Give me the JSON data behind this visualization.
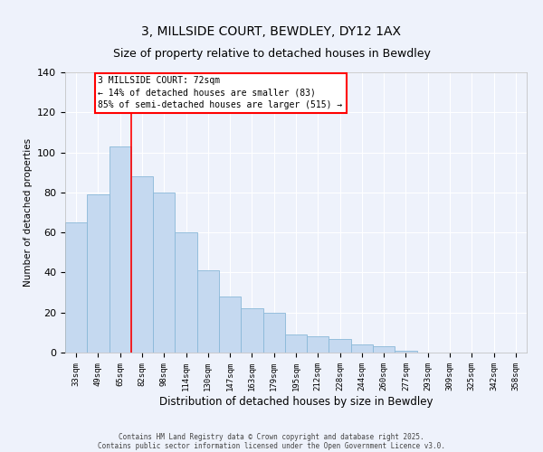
{
  "title": "3, MILLSIDE COURT, BEWDLEY, DY12 1AX",
  "subtitle": "Size of property relative to detached houses in Bewdley",
  "xlabel": "Distribution of detached houses by size in Bewdley",
  "ylabel": "Number of detached properties",
  "categories": [
    "33sqm",
    "49sqm",
    "65sqm",
    "82sqm",
    "98sqm",
    "114sqm",
    "130sqm",
    "147sqm",
    "163sqm",
    "179sqm",
    "195sqm",
    "212sqm",
    "228sqm",
    "244sqm",
    "260sqm",
    "277sqm",
    "293sqm",
    "309sqm",
    "325sqm",
    "342sqm",
    "358sqm"
  ],
  "values": [
    65,
    79,
    103,
    88,
    80,
    60,
    41,
    28,
    22,
    20,
    9,
    8,
    7,
    4,
    3,
    1,
    0,
    0,
    0,
    0,
    0
  ],
  "bar_color": "#c5d9f0",
  "bar_edge_color": "#8ab8d8",
  "background_color": "#eef2fb",
  "grid_color": "#ffffff",
  "red_line_x": 2.5,
  "annotation_text_line1": "3 MILLSIDE COURT: 72sqm",
  "annotation_text_line2": "← 14% of detached houses are smaller (83)",
  "annotation_text_line3": "85% of semi-detached houses are larger (515) →",
  "ylim": [
    0,
    140
  ],
  "yticks": [
    0,
    20,
    40,
    60,
    80,
    100,
    120,
    140
  ],
  "footer_line1": "Contains HM Land Registry data © Crown copyright and database right 2025.",
  "footer_line2": "Contains public sector information licensed under the Open Government Licence v3.0."
}
